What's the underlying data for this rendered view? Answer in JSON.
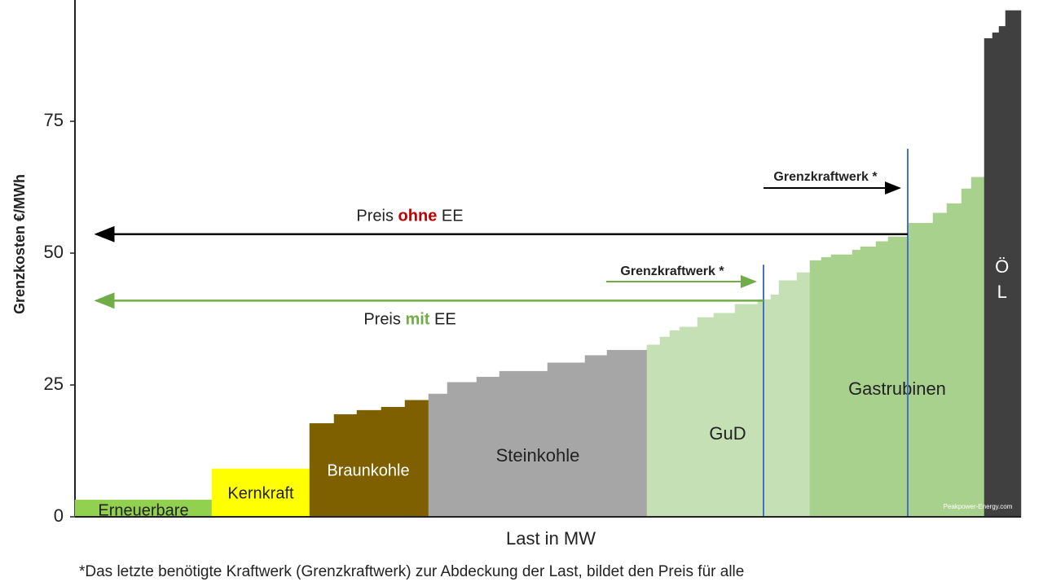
{
  "chart_data": {
    "type": "merit-order",
    "y_label": "Grenzkosten €/MWh",
    "x_label": "Last in MW",
    "ylim": [
      0,
      98
    ],
    "yticks": [
      0,
      25,
      50,
      75
    ],
    "xlim": [
      0,
      1161
    ],
    "series": [
      {
        "name": "Erneuerbare",
        "color": "#92d050",
        "bins": [
          0,
          168
        ],
        "values": [
          3.2
        ]
      },
      {
        "name": "Kernkraft",
        "color": "#ffff00",
        "bins": [
          168,
          288
        ],
        "values": [
          9.1
        ]
      },
      {
        "name": "Braunkohle",
        "color": "#7f6000",
        "bins": [
          288,
          318,
          346,
          376,
          405,
          434
        ],
        "values": [
          17.7,
          19.4,
          20.2,
          20.8,
          22.1
        ]
      },
      {
        "name": "Steinkohle",
        "color": "#a6a6a6",
        "bins": [
          434,
          457,
          493,
          521,
          580,
          626,
          653,
          702
        ],
        "values": [
          23.3,
          25.5,
          26.5,
          27.6,
          29.2,
          30.6,
          31.6
        ]
      },
      {
        "name": "GuD",
        "color": "#c5e0b4",
        "bins": [
          702,
          718,
          730,
          742,
          764,
          784,
          810,
          838,
          854,
          864,
          886,
          902
        ],
        "values": [
          32.6,
          34.1,
          35.3,
          36,
          37.8,
          38.6,
          40.3,
          41.2,
          42.1,
          44.8,
          46.3
        ]
      },
      {
        "name": "Gastrubinen",
        "color": "#a9d18e",
        "bins": [
          902,
          916,
          928,
          954,
          964,
          983,
          998,
          1023,
          1053,
          1070,
          1088,
          1100,
          1116
        ],
        "values": [
          48.6,
          49.2,
          49.7,
          50.6,
          51.2,
          52.2,
          53.1,
          55.7,
          57.6,
          59.4,
          62.2,
          64.4
        ]
      },
      {
        "name": "ÖL",
        "color": "#404040",
        "bins": [
          1116,
          1126,
          1134,
          1142,
          1161
        ],
        "values": [
          90.7,
          91.8,
          93,
          96
        ]
      }
    ],
    "marginal_units": [
      {
        "x": 845,
        "top": 47.8,
        "color": "#4472c4",
        "label": "Grenzkraftwerk *",
        "arrow_color": "#70ad47"
      },
      {
        "x": 1022,
        "top": 69.8,
        "color": "#4472c4",
        "label": "Grenzkraftwerk *",
        "arrow_color": "#000000"
      }
    ],
    "price_lines": [
      {
        "label_parts": [
          "Preis ",
          "ohne",
          " EE"
        ],
        "value": 53.6,
        "color": "#000000",
        "highlight_color": "#c00000"
      },
      {
        "label_parts": [
          "Preis ",
          "mit",
          " EE"
        ],
        "value": 41.0,
        "color": "#70ad47",
        "highlight_color": "#70ad47"
      }
    ],
    "watermark": "Peakpower-Energy.com",
    "footnote": "*Das letzte benötigte Kraftwerk (Grenzkraftwerk) zur Abdeckung der Last, bildet den Preis für alle"
  }
}
